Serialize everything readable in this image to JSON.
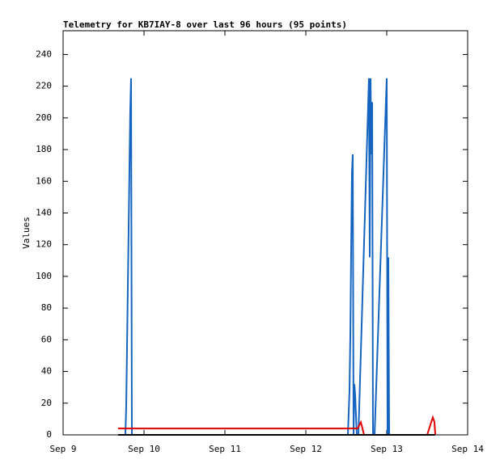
{
  "chart_data": {
    "type": "line",
    "title": "Telemetry for KB7IAY-8 over last 96 hours (95 points)",
    "y_label": "Values",
    "xlim": [
      9,
      14
    ],
    "xticks": [
      {
        "value": 9,
        "label": "Sep 9"
      },
      {
        "value": 10,
        "label": "Sep 10"
      },
      {
        "value": 11,
        "label": "Sep 11"
      },
      {
        "value": 12,
        "label": "Sep 12"
      },
      {
        "value": 13,
        "label": "Sep 13"
      },
      {
        "value": 14,
        "label": "Sep 14"
      }
    ],
    "ylim": [
      0,
      255
    ],
    "yticks": [
      0,
      20,
      40,
      60,
      80,
      100,
      120,
      140,
      160,
      180,
      200,
      220,
      240
    ],
    "series": [
      {
        "color": "#1565c0",
        "x": [
          9.68,
          9.77,
          9.78,
          9.79,
          9.8,
          9.81,
          9.82,
          9.83,
          9.84,
          9.85,
          9.86,
          12.52,
          12.54,
          12.55,
          12.56,
          12.57,
          12.58,
          12.59,
          12.6,
          12.61,
          12.62,
          12.63,
          12.65,
          12.78,
          12.79,
          12.8,
          12.81,
          12.82,
          12.83,
          12.84,
          12.85,
          13.0,
          13.01,
          13.02,
          13.03,
          13.6
        ],
        "values": [
          0,
          0,
          18,
          55,
          93,
          130,
          168,
          205,
          225,
          0,
          0,
          0,
          28,
          62,
          115,
          165,
          177,
          0,
          32,
          25,
          12,
          0,
          0,
          225,
          112,
          225,
          177,
          210,
          0,
          0,
          0,
          225,
          0,
          112,
          0,
          0
        ]
      },
      {
        "color": "#e00000",
        "x": [
          9.68,
          12.64,
          12.68,
          12.72,
          13.5,
          13.55,
          13.57,
          13.59,
          13.6
        ],
        "values": [
          4,
          4,
          8,
          0,
          0,
          8,
          11,
          8,
          0
        ]
      },
      {
        "color": "#000000",
        "x": [
          9.68,
          13.6
        ],
        "values": [
          0,
          0
        ]
      }
    ]
  }
}
